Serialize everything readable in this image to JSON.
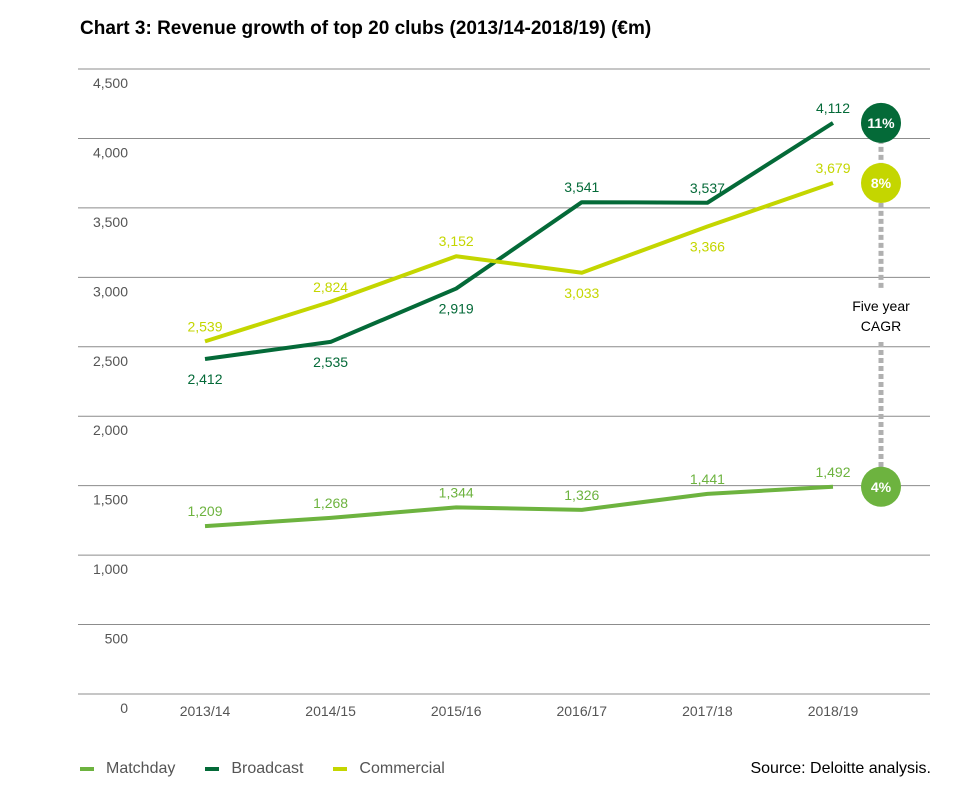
{
  "title": "Chart 3: Revenue growth of top 20 clubs (2013/14-2018/19) (€m)",
  "source": "Source: Deloitte analysis.",
  "cagr_label": [
    "Five year",
    "CAGR"
  ],
  "colors": {
    "matchday": "#6db33f",
    "broadcast": "#046a38",
    "commercial": "#c4d600",
    "grid": "#8c8c8c"
  },
  "chart_data": {
    "type": "line",
    "categories": [
      "2013/14",
      "2014/15",
      "2015/16",
      "2016/17",
      "2017/18",
      "2018/19"
    ],
    "y_ticks": [
      "0",
      "500",
      "1,000",
      "1,500",
      "2,000",
      "2,500",
      "3,000",
      "3,500",
      "4,000",
      "4,500"
    ],
    "ylim": [
      0,
      4500
    ],
    "legend_position": "bottom-left",
    "series": [
      {
        "key": "matchday",
        "name": "Matchday",
        "values": [
          1209,
          1268,
          1344,
          1326,
          1441,
          1492
        ],
        "labels": [
          "1,209",
          "1,268",
          "1,344",
          "1,326",
          "1,441",
          "1,492"
        ],
        "cagr": "4%"
      },
      {
        "key": "broadcast",
        "name": "Broadcast",
        "values": [
          2412,
          2535,
          2919,
          3541,
          3537,
          4112
        ],
        "labels": [
          "2,412",
          "2,535",
          "2,919",
          "3,541",
          "3,537",
          "4,112"
        ],
        "cagr": "11%"
      },
      {
        "key": "commercial",
        "name": "Commercial",
        "values": [
          2539,
          2824,
          3152,
          3033,
          3366,
          3679
        ],
        "labels": [
          "2,539",
          "2,824",
          "3,152",
          "3,033",
          "3,366",
          "3,679"
        ],
        "cagr": "8%"
      }
    ]
  }
}
